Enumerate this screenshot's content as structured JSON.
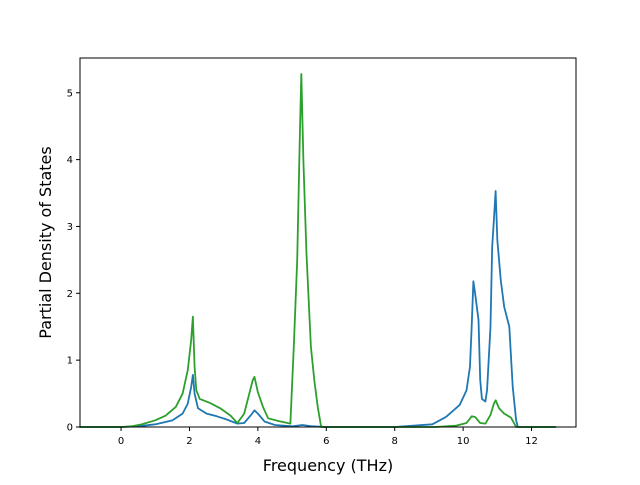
{
  "chart_data": {
    "type": "line",
    "title": "",
    "xlabel": "Frequency (THz)",
    "ylabel": "Partial Density of States",
    "xlim": [
      -1.2,
      13.3
    ],
    "ylim": [
      0,
      5.52
    ],
    "xticks": [
      0,
      2,
      4,
      6,
      8,
      10,
      12
    ],
    "xtick_labels": [
      "0",
      "2",
      "4",
      "6",
      "8",
      "10",
      "12"
    ],
    "yticks": [
      0,
      1,
      2,
      3,
      4,
      5
    ],
    "ytick_labels": [
      "0",
      "1",
      "2",
      "3",
      "4",
      "5"
    ],
    "grid": false,
    "legend": "none",
    "series": [
      {
        "color": "#1f77b4",
        "points": [
          [
            -1.2,
            0
          ],
          [
            0,
            0
          ],
          [
            0.5,
            0.01
          ],
          [
            1.0,
            0.04
          ],
          [
            1.5,
            0.1
          ],
          [
            1.8,
            0.2
          ],
          [
            1.95,
            0.35
          ],
          [
            2.05,
            0.6
          ],
          [
            2.1,
            0.78
          ],
          [
            2.15,
            0.5
          ],
          [
            2.25,
            0.28
          ],
          [
            2.5,
            0.2
          ],
          [
            2.8,
            0.16
          ],
          [
            3.1,
            0.11
          ],
          [
            3.4,
            0.05
          ],
          [
            3.6,
            0.06
          ],
          [
            3.8,
            0.18
          ],
          [
            3.9,
            0.25
          ],
          [
            4.0,
            0.2
          ],
          [
            4.2,
            0.08
          ],
          [
            4.5,
            0.03
          ],
          [
            5.0,
            0.01
          ],
          [
            5.3,
            0.03
          ],
          [
            5.6,
            0.01
          ],
          [
            6.0,
            0
          ],
          [
            8.0,
            0
          ],
          [
            9.1,
            0.04
          ],
          [
            9.5,
            0.15
          ],
          [
            9.9,
            0.33
          ],
          [
            10.1,
            0.55
          ],
          [
            10.2,
            0.9
          ],
          [
            10.25,
            1.5
          ],
          [
            10.3,
            2.18
          ],
          [
            10.35,
            2.0
          ],
          [
            10.45,
            1.6
          ],
          [
            10.5,
            0.7
          ],
          [
            10.55,
            0.42
          ],
          [
            10.65,
            0.38
          ],
          [
            10.7,
            0.55
          ],
          [
            10.8,
            1.5
          ],
          [
            10.85,
            2.7
          ],
          [
            10.9,
            3.1
          ],
          [
            10.95,
            3.53
          ],
          [
            11.0,
            2.8
          ],
          [
            11.1,
            2.2
          ],
          [
            11.2,
            1.8
          ],
          [
            11.35,
            1.5
          ],
          [
            11.45,
            0.6
          ],
          [
            11.55,
            0.1
          ],
          [
            11.6,
            0
          ],
          [
            12.7,
            0
          ]
        ]
      },
      {
        "color": "#2ca02c",
        "points": [
          [
            -1.2,
            0
          ],
          [
            0,
            0
          ],
          [
            0.3,
            0.01
          ],
          [
            0.6,
            0.04
          ],
          [
            1.0,
            0.1
          ],
          [
            1.3,
            0.17
          ],
          [
            1.6,
            0.3
          ],
          [
            1.8,
            0.5
          ],
          [
            1.95,
            0.85
          ],
          [
            2.05,
            1.3
          ],
          [
            2.1,
            1.65
          ],
          [
            2.15,
            0.9
          ],
          [
            2.2,
            0.55
          ],
          [
            2.3,
            0.42
          ],
          [
            2.6,
            0.36
          ],
          [
            2.9,
            0.28
          ],
          [
            3.2,
            0.17
          ],
          [
            3.4,
            0.06
          ],
          [
            3.6,
            0.2
          ],
          [
            3.75,
            0.5
          ],
          [
            3.85,
            0.7
          ],
          [
            3.9,
            0.75
          ],
          [
            4.0,
            0.52
          ],
          [
            4.15,
            0.3
          ],
          [
            4.3,
            0.13
          ],
          [
            4.6,
            0.09
          ],
          [
            4.95,
            0.05
          ],
          [
            5.05,
            1.2
          ],
          [
            5.15,
            2.5
          ],
          [
            5.22,
            4.2
          ],
          [
            5.27,
            5.28
          ],
          [
            5.33,
            4.0
          ],
          [
            5.42,
            2.6
          ],
          [
            5.55,
            1.2
          ],
          [
            5.65,
            0.7
          ],
          [
            5.75,
            0.3
          ],
          [
            5.85,
            0
          ],
          [
            8.0,
            0
          ],
          [
            9.2,
            0
          ],
          [
            9.8,
            0.02
          ],
          [
            10.1,
            0.06
          ],
          [
            10.25,
            0.16
          ],
          [
            10.35,
            0.15
          ],
          [
            10.5,
            0.06
          ],
          [
            10.65,
            0.05
          ],
          [
            10.8,
            0.18
          ],
          [
            10.9,
            0.35
          ],
          [
            10.95,
            0.4
          ],
          [
            11.05,
            0.28
          ],
          [
            11.2,
            0.2
          ],
          [
            11.4,
            0.14
          ],
          [
            11.55,
            0
          ],
          [
            12.7,
            0
          ]
        ]
      }
    ]
  }
}
